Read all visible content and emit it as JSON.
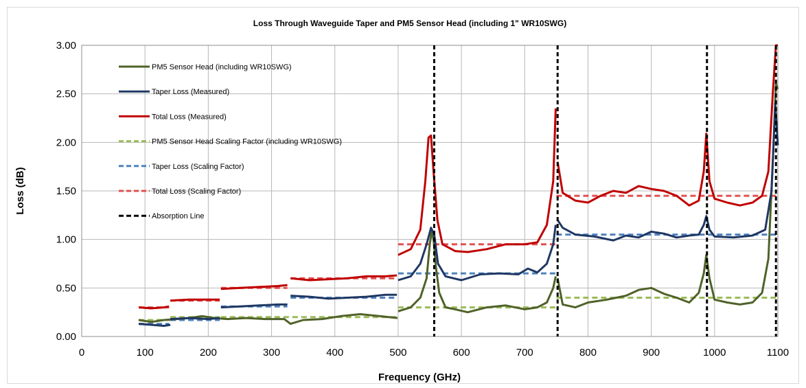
{
  "chart_data": {
    "type": "line",
    "title": "Loss Through Waveguide Taper and PM5 Sensor Head (including 1\" WR10SWG)",
    "xlabel": "Frequency (GHz)",
    "ylabel": "Loss (dB)",
    "xlim": [
      0,
      1100
    ],
    "ylim": [
      0,
      3
    ],
    "x_ticks": [
      "0",
      "100",
      "200",
      "300",
      "400",
      "500",
      "600",
      "700",
      "800",
      "900",
      "1000",
      "1100"
    ],
    "y_ticks": [
      "0.00",
      "0.50",
      "1.00",
      "1.50",
      "2.00",
      "2.50",
      "3.00"
    ],
    "grid": true,
    "legend_position": "upper-left, inside plot",
    "series": [
      {
        "name": "PM5 Sensor Head (including WR10SWG)",
        "color": "#4f6228",
        "style": "solid",
        "segments": [
          [
            [
              90,
              0.17
            ],
            [
              110,
              0.15
            ],
            [
              130,
              0.17
            ],
            [
              150,
              0.18
            ],
            [
              170,
              0.19
            ],
            [
              190,
              0.21
            ],
            [
              210,
              0.19
            ],
            [
              230,
              0.18
            ],
            [
              260,
              0.19
            ],
            [
              290,
              0.18
            ],
            [
              320,
              0.18
            ],
            [
              330,
              0.13
            ],
            [
              350,
              0.17
            ],
            [
              380,
              0.18
            ],
            [
              410,
              0.21
            ],
            [
              440,
              0.23
            ],
            [
              470,
              0.21
            ],
            [
              499,
              0.19
            ]
          ],
          [
            [
              500,
              0.26
            ],
            [
              520,
              0.3
            ],
            [
              535,
              0.4
            ],
            [
              545,
              0.6
            ],
            [
              550,
              0.95
            ],
            [
              553,
              1.08
            ],
            [
              556,
              1.0
            ],
            [
              560,
              0.7
            ],
            [
              565,
              0.45
            ],
            [
              575,
              0.3
            ],
            [
              590,
              0.28
            ],
            [
              610,
              0.25
            ],
            [
              640,
              0.3
            ],
            [
              670,
              0.32
            ],
            [
              700,
              0.28
            ],
            [
              720,
              0.3
            ],
            [
              735,
              0.35
            ],
            [
              745,
              0.5
            ],
            [
              749,
              0.62
            ]
          ],
          [
            [
              752,
              0.6
            ],
            [
              760,
              0.33
            ],
            [
              780,
              0.3
            ],
            [
              800,
              0.35
            ],
            [
              830,
              0.38
            ],
            [
              860,
              0.42
            ],
            [
              880,
              0.48
            ],
            [
              900,
              0.5
            ],
            [
              920,
              0.44
            ],
            [
              940,
              0.4
            ],
            [
              960,
              0.35
            ],
            [
              975,
              0.45
            ],
            [
              983,
              0.65
            ],
            [
              987,
              0.84
            ],
            [
              992,
              0.6
            ],
            [
              1000,
              0.38
            ],
            [
              1020,
              0.35
            ],
            [
              1040,
              0.33
            ],
            [
              1060,
              0.35
            ],
            [
              1075,
              0.45
            ],
            [
              1085,
              0.8
            ],
            [
              1092,
              1.8
            ],
            [
              1097,
              2.6
            ],
            [
              1100,
              2.55
            ]
          ]
        ]
      },
      {
        "name": "Taper Loss (Measured)",
        "color": "#1f3864",
        "style": "solid",
        "segments": [
          [
            [
              90,
              0.13
            ],
            [
              110,
              0.12
            ],
            [
              130,
              0.11
            ],
            [
              140,
              0.12
            ]
          ],
          [
            [
              140,
              0.18
            ],
            [
              170,
              0.19
            ],
            [
              200,
              0.18
            ],
            [
              218,
              0.19
            ]
          ],
          [
            [
              220,
              0.3
            ],
            [
              250,
              0.31
            ],
            [
              280,
              0.32
            ],
            [
              310,
              0.33
            ],
            [
              325,
              0.33
            ]
          ],
          [
            [
              330,
              0.42
            ],
            [
              360,
              0.41
            ],
            [
              390,
              0.39
            ],
            [
              420,
              0.4
            ],
            [
              450,
              0.41
            ],
            [
              480,
              0.43
            ],
            [
              498,
              0.43
            ]
          ],
          [
            [
              500,
              0.58
            ],
            [
              520,
              0.62
            ],
            [
              535,
              0.75
            ],
            [
              545,
              0.95
            ],
            [
              552,
              1.12
            ],
            [
              557,
              1.05
            ],
            [
              563,
              0.75
            ],
            [
              575,
              0.62
            ],
            [
              600,
              0.58
            ],
            [
              630,
              0.64
            ],
            [
              660,
              0.65
            ],
            [
              690,
              0.64
            ],
            [
              705,
              0.7
            ],
            [
              720,
              0.66
            ],
            [
              735,
              0.75
            ],
            [
              745,
              0.95
            ],
            [
              749,
              1.15
            ]
          ],
          [
            [
              752,
              1.2
            ],
            [
              760,
              1.12
            ],
            [
              780,
              1.05
            ],
            [
              810,
              1.03
            ],
            [
              840,
              0.99
            ],
            [
              860,
              1.04
            ],
            [
              880,
              1.02
            ],
            [
              900,
              1.08
            ],
            [
              920,
              1.06
            ],
            [
              940,
              1.02
            ],
            [
              960,
              1.04
            ],
            [
              975,
              1.05
            ],
            [
              983,
              1.15
            ],
            [
              987,
              1.24
            ],
            [
              992,
              1.1
            ],
            [
              1000,
              1.03
            ],
            [
              1030,
              1.02
            ],
            [
              1060,
              1.04
            ],
            [
              1080,
              1.1
            ],
            [
              1090,
              1.5
            ],
            [
              1096,
              2.4
            ],
            [
              1100,
              1.97
            ]
          ]
        ]
      },
      {
        "name": "Total Loss (Measured)",
        "color": "#c00000",
        "style": "solid",
        "segments": [
          [
            [
              90,
              0.3
            ],
            [
              110,
              0.29
            ],
            [
              130,
              0.3
            ],
            [
              138,
              0.31
            ]
          ],
          [
            [
              140,
              0.37
            ],
            [
              170,
              0.38
            ],
            [
              200,
              0.38
            ],
            [
              218,
              0.38
            ]
          ],
          [
            [
              220,
              0.49
            ],
            [
              250,
              0.5
            ],
            [
              280,
              0.51
            ],
            [
              310,
              0.52
            ],
            [
              325,
              0.53
            ]
          ],
          [
            [
              330,
              0.6
            ],
            [
              360,
              0.58
            ],
            [
              390,
              0.59
            ],
            [
              420,
              0.6
            ],
            [
              450,
              0.62
            ],
            [
              480,
              0.62
            ],
            [
              498,
              0.63
            ]
          ],
          [
            [
              500,
              0.84
            ],
            [
              520,
              0.9
            ],
            [
              535,
              1.1
            ],
            [
              543,
              1.6
            ],
            [
              548,
              2.05
            ],
            [
              552,
              2.07
            ],
            [
              556,
              1.7
            ],
            [
              562,
              1.2
            ],
            [
              570,
              0.95
            ],
            [
              590,
              0.88
            ],
            [
              610,
              0.87
            ],
            [
              640,
              0.9
            ],
            [
              670,
              0.95
            ],
            [
              700,
              0.95
            ],
            [
              720,
              0.97
            ],
            [
              735,
              1.15
            ],
            [
              745,
              1.6
            ],
            [
              749,
              2.35
            ]
          ],
          [
            [
              752,
              1.8
            ],
            [
              760,
              1.48
            ],
            [
              780,
              1.4
            ],
            [
              800,
              1.38
            ],
            [
              820,
              1.45
            ],
            [
              840,
              1.5
            ],
            [
              860,
              1.48
            ],
            [
              880,
              1.55
            ],
            [
              900,
              1.52
            ],
            [
              920,
              1.5
            ],
            [
              940,
              1.45
            ],
            [
              960,
              1.35
            ],
            [
              975,
              1.4
            ],
            [
              983,
              1.7
            ],
            [
              987,
              2.09
            ],
            [
              992,
              1.6
            ],
            [
              1000,
              1.42
            ],
            [
              1020,
              1.38
            ],
            [
              1040,
              1.35
            ],
            [
              1060,
              1.38
            ],
            [
              1075,
              1.45
            ],
            [
              1085,
              1.7
            ],
            [
              1092,
              2.5
            ],
            [
              1097,
              3.0
            ],
            [
              1100,
              3.0
            ]
          ]
        ]
      },
      {
        "name": "PM5 Sensor Head Scaling Factor (including WR10SWG)",
        "color": "#9bbb59",
        "style": "dashed",
        "segments": [
          [
            [
              90,
              0.17
            ],
            [
              140,
              0.17
            ]
          ],
          [
            [
              140,
              0.2
            ],
            [
              218,
              0.2
            ]
          ],
          [
            [
              220,
              0.2
            ],
            [
              498,
              0.2
            ]
          ],
          [
            [
              500,
              0.3
            ],
            [
              750,
              0.3
            ]
          ],
          [
            [
              750,
              0.4
            ],
            [
              1100,
              0.4
            ]
          ]
        ]
      },
      {
        "name": "Taper Loss (Scaling Factor)",
        "color": "#4f81bd",
        "style": "dashed",
        "segments": [
          [
            [
              90,
              0.13
            ],
            [
              138,
              0.13
            ]
          ],
          [
            [
              140,
              0.17
            ],
            [
              218,
              0.17
            ]
          ],
          [
            [
              220,
              0.31
            ],
            [
              325,
              0.31
            ]
          ],
          [
            [
              330,
              0.4
            ],
            [
              498,
              0.4
            ]
          ],
          [
            [
              500,
              0.65
            ],
            [
              750,
              0.65
            ]
          ],
          [
            [
              750,
              1.05
            ],
            [
              1100,
              1.05
            ]
          ]
        ]
      },
      {
        "name": "Total Loss (Scaling Factor)",
        "color": "#e05050",
        "style": "dashed",
        "segments": [
          [
            [
              90,
              0.3
            ],
            [
              138,
              0.3
            ]
          ],
          [
            [
              140,
              0.37
            ],
            [
              218,
              0.37
            ]
          ],
          [
            [
              220,
              0.5
            ],
            [
              325,
              0.5
            ]
          ],
          [
            [
              330,
              0.6
            ],
            [
              498,
              0.6
            ]
          ],
          [
            [
              500,
              0.95
            ],
            [
              750,
              0.95
            ]
          ],
          [
            [
              750,
              1.45
            ],
            [
              1100,
              1.45
            ]
          ]
        ]
      },
      {
        "name": "Absorption Line",
        "color": "#000000",
        "style": "dashed",
        "vertical_lines_at_x": [
          557,
          752,
          988,
          1097
        ]
      }
    ]
  }
}
